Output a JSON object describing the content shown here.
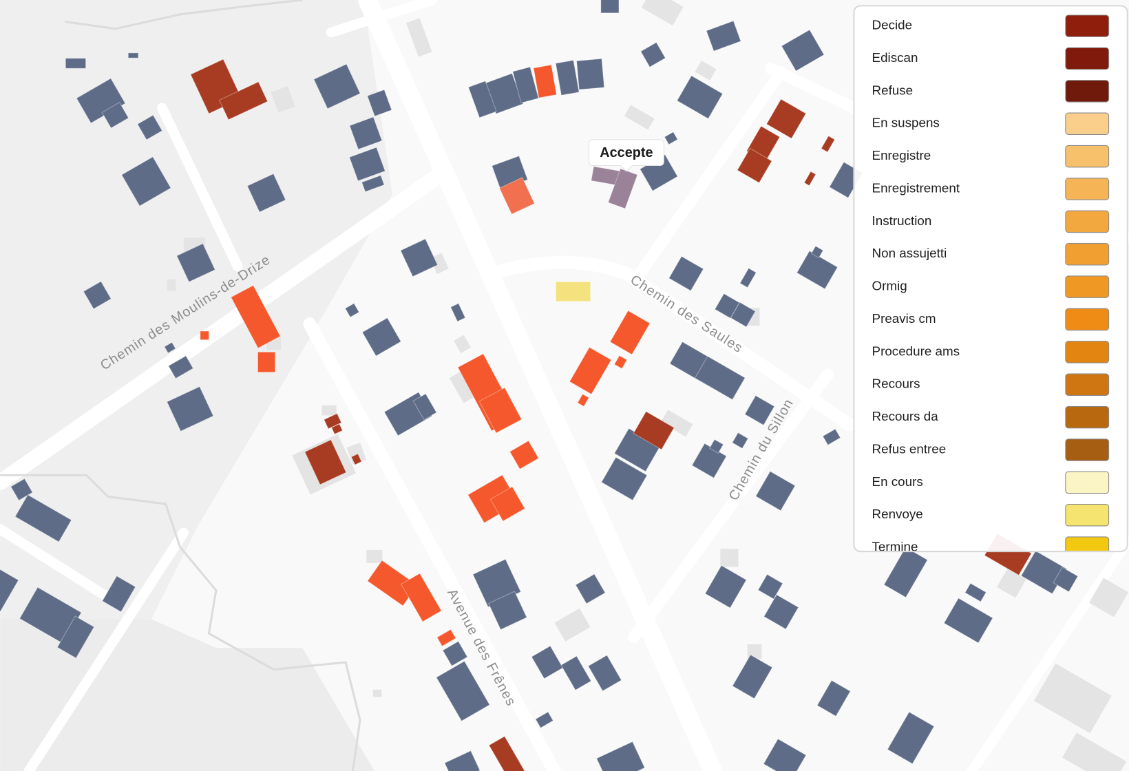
{
  "tooltip": {
    "label": "Accepte"
  },
  "streets": [
    {
      "name": "Chemin des Moulins-de-Drize"
    },
    {
      "name": "Chemin des Saules"
    },
    {
      "name": "Chemin du Sillon"
    },
    {
      "name": "Avenue des Frênes"
    }
  ],
  "legend": {
    "items": [
      {
        "label": "Decide",
        "color": "#8f1e0c"
      },
      {
        "label": "Ediscan",
        "color": "#801a0d"
      },
      {
        "label": "Refuse",
        "color": "#701a0b"
      },
      {
        "label": "En suspens",
        "color": "#f9cf8b"
      },
      {
        "label": "Enregistre",
        "color": "#f7c06a"
      },
      {
        "label": "Enregistrement",
        "color": "#f5b455"
      },
      {
        "label": "Instruction",
        "color": "#f3a83f"
      },
      {
        "label": "Non assujetti",
        "color": "#f29f32"
      },
      {
        "label": "Ormig",
        "color": "#f09824"
      },
      {
        "label": "Preavis cm",
        "color": "#ef8c16"
      },
      {
        "label": "Procedure ams",
        "color": "#e38511"
      },
      {
        "label": "Recours",
        "color": "#cf7612"
      },
      {
        "label": "Recours da",
        "color": "#b8690f"
      },
      {
        "label": "Refus entree",
        "color": "#a65e12"
      },
      {
        "label": "En cours",
        "color": "#fbf4c4"
      },
      {
        "label": "Renvoye",
        "color": "#f5e46f"
      },
      {
        "label": "Termine",
        "color": "#f2c811"
      }
    ]
  }
}
